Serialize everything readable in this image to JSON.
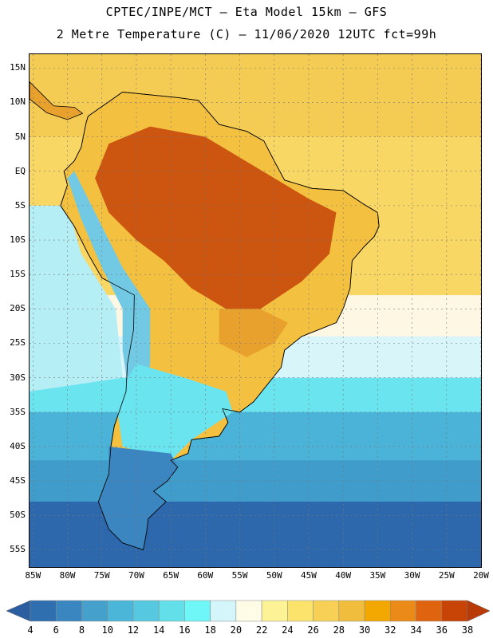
{
  "title": {
    "line1": "CPTEC/INPE/MCT —  Eta Model 15km — GFS",
    "line2": "2 Metre Temperature (C) — 11/06/2020 12UTC fct=99h"
  },
  "axes": {
    "lat_labels": [
      "15N",
      "10N",
      "5N",
      "EQ",
      "5S",
      "10S",
      "15S",
      "20S",
      "25S",
      "30S",
      "35S",
      "40S",
      "45S",
      "50S",
      "55S"
    ],
    "lat_values": [
      15,
      10,
      5,
      0,
      -5,
      -10,
      -15,
      -20,
      -25,
      -30,
      -35,
      -40,
      -45,
      -50,
      -55
    ],
    "lon_labels": [
      "85W",
      "80W",
      "75W",
      "70W",
      "65W",
      "60W",
      "55W",
      "50W",
      "45W",
      "40W",
      "35W",
      "30W",
      "25W",
      "20W"
    ],
    "lon_values": [
      -85,
      -80,
      -75,
      -70,
      -65,
      -60,
      -55,
      -50,
      -45,
      -40,
      -35,
      -30,
      -25,
      -20
    ],
    "lon_range": [
      -85.5,
      -20
    ],
    "lat_range": [
      -57.5,
      17
    ]
  },
  "colorbar": {
    "ticks": [
      "4",
      "6",
      "8",
      "10",
      "12",
      "14",
      "16",
      "18",
      "20",
      "22",
      "24",
      "26",
      "28",
      "30",
      "32",
      "34",
      "36",
      "38"
    ],
    "colors": [
      "#2f6fb0",
      "#3a86c0",
      "#45a1cc",
      "#4cb6d8",
      "#56c8e0",
      "#62dfe9",
      "#6ff6f6",
      "#d4f6fb",
      "#fefbe6",
      "#fdf396",
      "#fce46c",
      "#f7d055",
      "#f0bd3c",
      "#f2a800",
      "#ec8a18",
      "#e06410",
      "#c84406"
    ],
    "left_arrow_color": "#2a5ea0",
    "right_arrow_color": "#b83a06"
  },
  "field": {
    "ocean_cold": "#2d68ad",
    "ocean_cool": "#4bb3d7",
    "ocean_mild": "#6ae4ef",
    "ocean_warm": "#fdf7e3",
    "ocean_tropic": "#f5cc53",
    "land_hot": "#cc5510",
    "land_warm": "#e9a12e",
    "land_mild": "#f4c040",
    "andes": "#72c9e3",
    "patagonia": "#3b86c0"
  }
}
